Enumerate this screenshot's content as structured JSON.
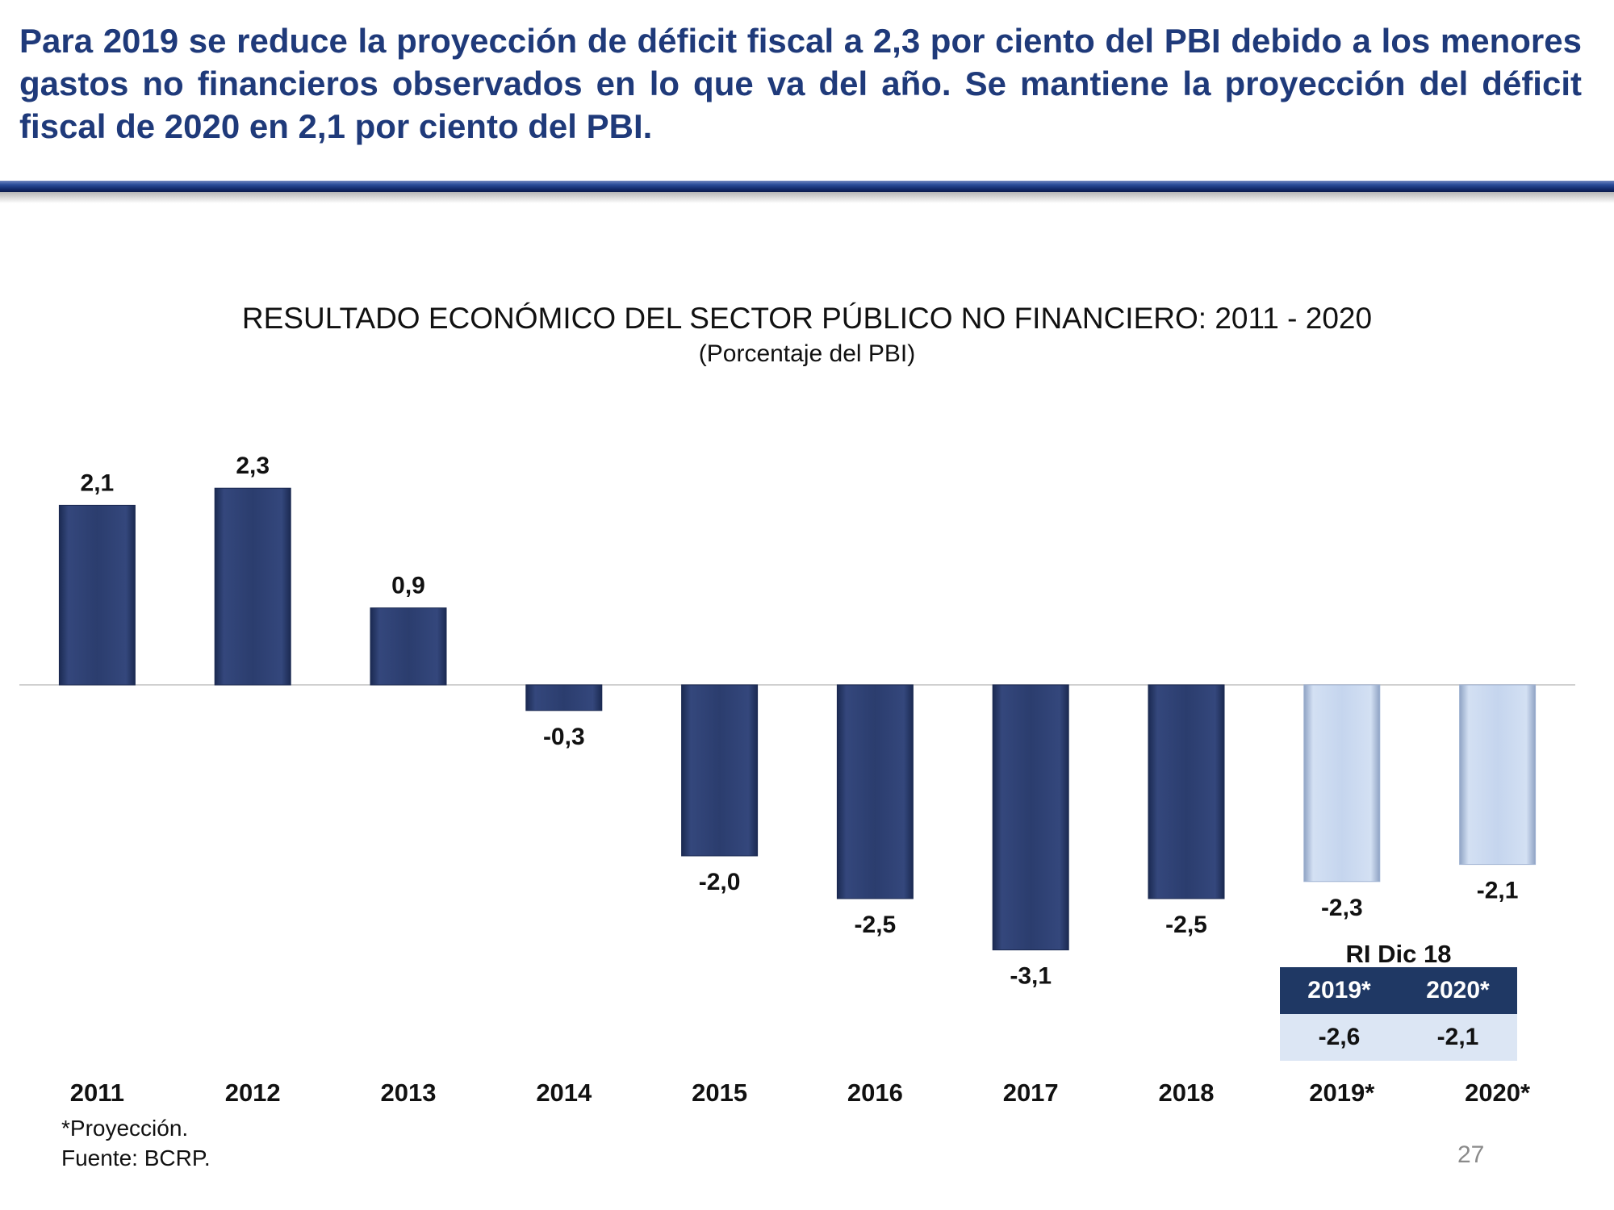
{
  "headline": "Para 2019 se reduce la proyección de déficit fiscal a 2,3 por ciento del PBI debido a los menores gastos no financieros observados en lo que va del año. Se mantiene la proyección del déficit fiscal de 2020 en 2,1 por ciento del PBI.",
  "colors": {
    "actual_bar": "#2b3d6e",
    "projection_bar": "#c5d5ee",
    "headline_text": "#1f3a7a",
    "table_header": "#1f3864",
    "table_body": "#dce6f4"
  },
  "chart_data": {
    "type": "bar",
    "title": "RESULTADO ECONÓMICO DEL SECTOR PÚBLICO NO FINANCIERO:  2011 - 2020",
    "subtitle": "(Porcentaje del PBI)",
    "categories": [
      "2011",
      "2012",
      "2013",
      "2014",
      "2015",
      "2016",
      "2017",
      "2018",
      "2019*",
      "2020*"
    ],
    "values": [
      2.1,
      2.3,
      0.9,
      -0.3,
      -2.0,
      -2.5,
      -3.1,
      -2.5,
      -2.3,
      -2.1
    ],
    "value_labels": [
      "2,1",
      "2,3",
      "0,9",
      "-0,3",
      "-2,0",
      "-2,5",
      "-3,1",
      "-2,5",
      "-2,3",
      "-2,1"
    ],
    "projection": [
      false,
      false,
      false,
      false,
      false,
      false,
      false,
      false,
      true,
      true
    ],
    "xlabel": "",
    "ylabel": "",
    "ylim": [
      -3.1,
      2.3
    ],
    "grid": false,
    "legend": "none"
  },
  "inset_table": {
    "title": "RI Dic 18",
    "headers": [
      "2019*",
      "2020*"
    ],
    "values": [
      "-2,6",
      "-2,1"
    ]
  },
  "notes": {
    "projection": "*Proyección.",
    "source": "Fuente: BCRP."
  },
  "page_number": "27"
}
